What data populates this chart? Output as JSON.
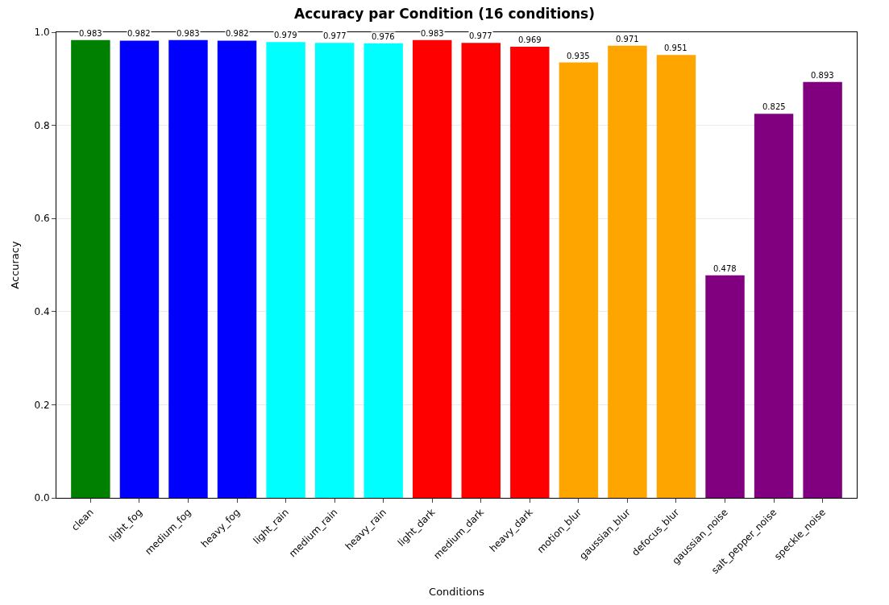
{
  "chart_data": {
    "type": "bar",
    "title": "Accuracy par Condition (16 conditions)",
    "xlabel": "Conditions",
    "ylabel": "Accuracy",
    "categories": [
      "clean",
      "light_fog",
      "medium_fog",
      "heavy_fog",
      "light_rain",
      "medium_rain",
      "heavy_rain",
      "light_dark",
      "medium_dark",
      "heavy_dark",
      "motion_blur",
      "gaussian_blur",
      "defocus_blur",
      "gaussian_noise",
      "salt_pepper_noise",
      "speckle_noise"
    ],
    "values": [
      0.983,
      0.982,
      0.983,
      0.982,
      0.979,
      0.977,
      0.976,
      0.983,
      0.977,
      0.969,
      0.935,
      0.971,
      0.951,
      0.478,
      0.825,
      0.893
    ],
    "colors": [
      "#008000",
      "#0000ff",
      "#0000ff",
      "#0000ff",
      "#00ffff",
      "#00ffff",
      "#00ffff",
      "#ff0000",
      "#ff0000",
      "#ff0000",
      "#ffa500",
      "#ffa500",
      "#ffa500",
      "#800080",
      "#800080",
      "#800080"
    ],
    "ylim": [
      0,
      1.0
    ],
    "yticks": [
      {
        "value": 0,
        "label": "0.0"
      },
      0.2,
      0.4,
      0.6,
      0.8,
      {
        "value": 1.0,
        "label": "1.0"
      }
    ],
    "grid": "y",
    "data_labels": true
  }
}
